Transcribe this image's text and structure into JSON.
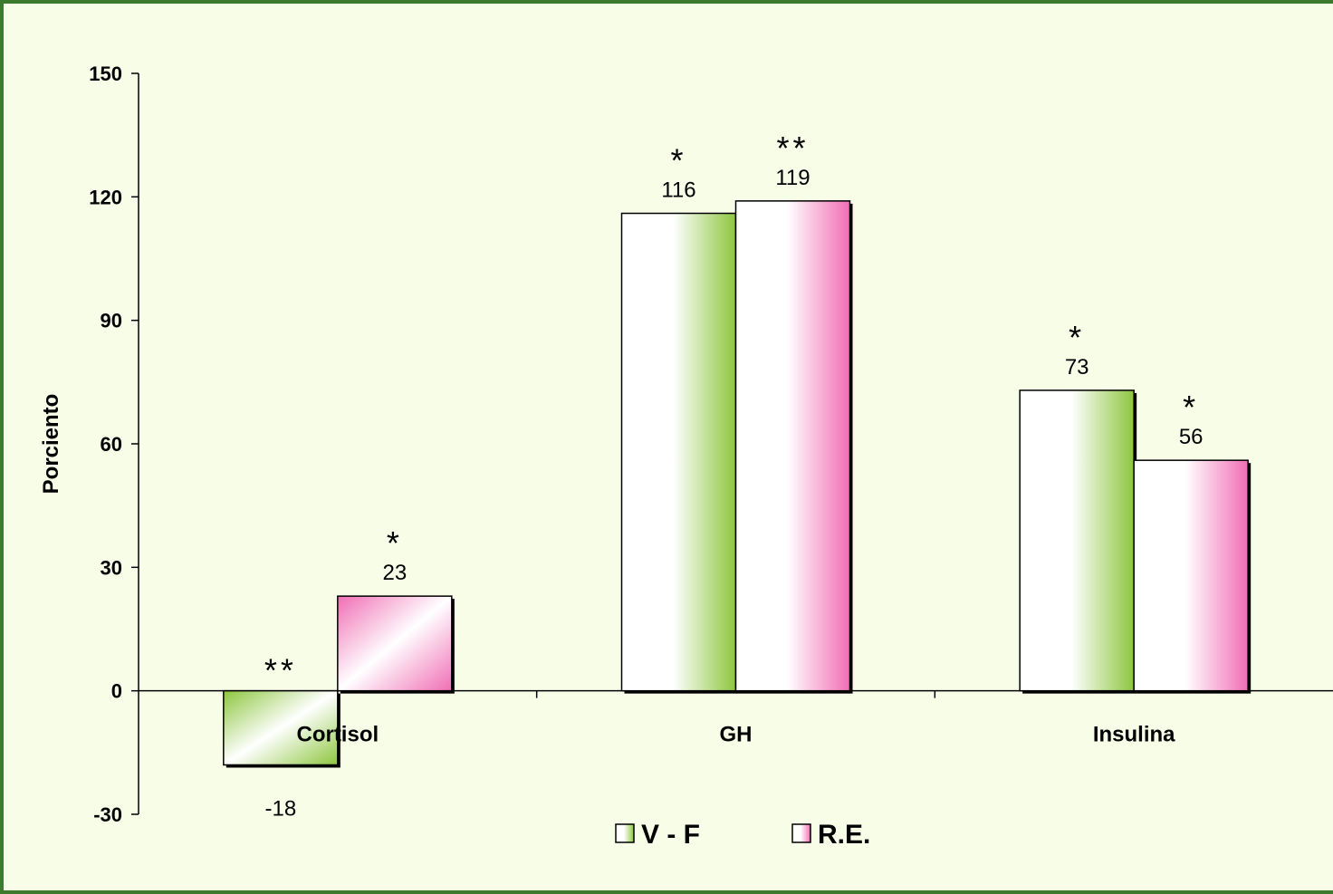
{
  "chart_data": {
    "type": "bar",
    "categories": [
      "Cortisol",
      "GH",
      "Insulina"
    ],
    "series": [
      {
        "name": "V - F",
        "values": [
          -18,
          116,
          73
        ],
        "color": "#8dc63f",
        "significance": [
          "**",
          "*",
          "*"
        ]
      },
      {
        "name": "R.E.",
        "values": [
          23,
          119,
          56
        ],
        "color": "#f06eb4",
        "significance": [
          "*",
          "**",
          "*"
        ]
      }
    ],
    "data_labels": [
      [
        "-18",
        "116",
        "73"
      ],
      [
        "23",
        "119",
        "56"
      ]
    ],
    "title": "",
    "xlabel": "",
    "ylabel": "Porciento",
    "ylim": [
      -30,
      150
    ],
    "yticks": [
      -30,
      0,
      30,
      60,
      90,
      120,
      150
    ],
    "grid": false,
    "legend_position": "bottom-center",
    "colors": {
      "frame_border": "#3c7a2e",
      "plot_background": "#f8fde8"
    }
  }
}
